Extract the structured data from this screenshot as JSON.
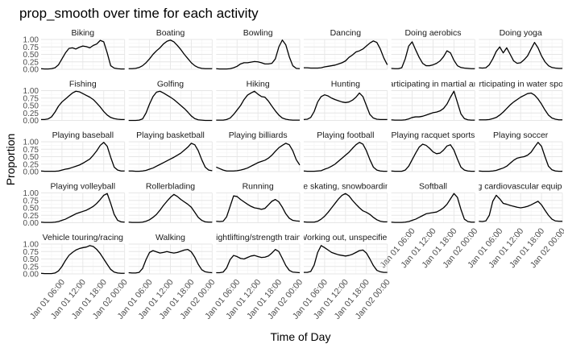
{
  "chart_data": {
    "type": "line",
    "title": "prop_smooth over time for each activity",
    "xlabel": "Time of Day",
    "ylabel": "Proportion",
    "x_range": [
      "Jan 01 00:00",
      "Jan 02 00:00"
    ],
    "x_ticks": [
      {
        "hour": 6,
        "label": "Jan 01 06:00"
      },
      {
        "hour": 12,
        "label": "Jan 01 12:00"
      },
      {
        "hour": 18,
        "label": "Jan 01 18:00"
      },
      {
        "hour": 24,
        "label": "Jan 02 00:00"
      }
    ],
    "ylim": [
      0,
      1
    ],
    "y_ticks": [
      {
        "value": 0,
        "label": "0.00"
      },
      {
        "value": 0.25,
        "label": "0.25"
      },
      {
        "value": 0.5,
        "label": "0.50"
      },
      {
        "value": 0.75,
        "label": "0.75"
      },
      {
        "value": 1,
        "label": "1.00"
      }
    ],
    "grid": true,
    "facet_columns": 6,
    "x_hours": [
      0,
      1,
      2,
      3,
      4,
      5,
      6,
      7,
      8,
      9,
      10,
      11,
      12,
      13,
      14,
      15,
      16,
      17,
      18,
      19,
      20,
      21,
      22,
      23,
      24
    ],
    "panels": [
      {
        "name": "Biking",
        "values": [
          0.02,
          0.01,
          0.01,
          0.02,
          0.05,
          0.15,
          0.35,
          0.55,
          0.7,
          0.72,
          0.68,
          0.74,
          0.78,
          0.76,
          0.72,
          0.8,
          0.85,
          0.97,
          0.92,
          0.55,
          0.12,
          0.04,
          0.02,
          0.01,
          0.01
        ]
      },
      {
        "name": "Boating",
        "values": [
          0.02,
          0.02,
          0.03,
          0.06,
          0.12,
          0.22,
          0.35,
          0.5,
          0.62,
          0.72,
          0.85,
          0.94,
          0.98,
          0.92,
          0.8,
          0.66,
          0.5,
          0.36,
          0.22,
          0.12,
          0.06,
          0.03,
          0.02,
          0.02,
          0.02
        ]
      },
      {
        "name": "Bowling",
        "values": [
          0.02,
          0.01,
          0.01,
          0.01,
          0.02,
          0.05,
          0.1,
          0.18,
          0.22,
          0.22,
          0.24,
          0.26,
          0.25,
          0.22,
          0.18,
          0.18,
          0.2,
          0.35,
          0.75,
          0.98,
          0.82,
          0.42,
          0.12,
          0.03,
          0.02
        ]
      },
      {
        "name": "Dancing",
        "values": [
          0.05,
          0.05,
          0.04,
          0.04,
          0.04,
          0.05,
          0.08,
          0.1,
          0.12,
          0.14,
          0.18,
          0.22,
          0.28,
          0.4,
          0.48,
          0.58,
          0.62,
          0.68,
          0.78,
          0.88,
          0.95,
          0.9,
          0.68,
          0.38,
          0.15
        ]
      },
      {
        "name": "Doing aerobics",
        "values": [
          0.03,
          0.02,
          0.02,
          0.05,
          0.35,
          0.78,
          0.92,
          0.65,
          0.4,
          0.2,
          0.12,
          0.12,
          0.15,
          0.2,
          0.28,
          0.42,
          0.62,
          0.55,
          0.3,
          0.12,
          0.06,
          0.04,
          0.03,
          0.02,
          0.02
        ]
      },
      {
        "name": "Doing yoga",
        "values": [
          0.05,
          0.04,
          0.05,
          0.15,
          0.35,
          0.6,
          0.75,
          0.55,
          0.72,
          0.5,
          0.28,
          0.2,
          0.22,
          0.32,
          0.45,
          0.68,
          0.9,
          0.72,
          0.45,
          0.25,
          0.12,
          0.06,
          0.04,
          0.03,
          0.03
        ]
      },
      {
        "name": "Fishing",
        "values": [
          0.03,
          0.03,
          0.05,
          0.12,
          0.28,
          0.48,
          0.62,
          0.72,
          0.82,
          0.92,
          0.98,
          0.96,
          0.9,
          0.84,
          0.78,
          0.7,
          0.58,
          0.45,
          0.3,
          0.18,
          0.1,
          0.06,
          0.04,
          0.03,
          0.03
        ]
      },
      {
        "name": "Golfing",
        "values": [
          0.0,
          0.0,
          0.0,
          0.01,
          0.05,
          0.25,
          0.55,
          0.8,
          0.95,
          0.98,
          0.92,
          0.85,
          0.78,
          0.7,
          0.6,
          0.5,
          0.4,
          0.28,
          0.15,
          0.06,
          0.02,
          0.01,
          0.0,
          0.0,
          0.0
        ]
      },
      {
        "name": "Hiking",
        "values": [
          0.01,
          0.01,
          0.01,
          0.03,
          0.08,
          0.2,
          0.35,
          0.5,
          0.7,
          0.85,
          0.92,
          0.98,
          0.88,
          0.8,
          0.78,
          0.65,
          0.48,
          0.32,
          0.18,
          0.08,
          0.04,
          0.02,
          0.01,
          0.01,
          0.01
        ]
      },
      {
        "name": "Hunting",
        "values": [
          0.03,
          0.04,
          0.1,
          0.3,
          0.62,
          0.8,
          0.86,
          0.82,
          0.75,
          0.7,
          0.66,
          0.62,
          0.6,
          0.62,
          0.68,
          0.78,
          0.92,
          0.8,
          0.5,
          0.2,
          0.08,
          0.04,
          0.03,
          0.03,
          0.03
        ]
      },
      {
        "name": "Participating in martial arts",
        "values": [
          0.02,
          0.01,
          0.01,
          0.01,
          0.02,
          0.05,
          0.1,
          0.12,
          0.12,
          0.14,
          0.18,
          0.22,
          0.26,
          0.28,
          0.32,
          0.4,
          0.55,
          0.78,
          0.98,
          0.6,
          0.22,
          0.06,
          0.02,
          0.01,
          0.01
        ]
      },
      {
        "name": "Participating in water sports",
        "values": [
          0.02,
          0.02,
          0.02,
          0.03,
          0.06,
          0.1,
          0.18,
          0.28,
          0.4,
          0.52,
          0.62,
          0.7,
          0.78,
          0.84,
          0.9,
          0.92,
          0.85,
          0.72,
          0.55,
          0.35,
          0.18,
          0.08,
          0.04,
          0.02,
          0.02
        ]
      },
      {
        "name": "Playing baseball",
        "values": [
          0.02,
          0.01,
          0.01,
          0.01,
          0.01,
          0.02,
          0.05,
          0.08,
          0.1,
          0.14,
          0.18,
          0.22,
          0.28,
          0.35,
          0.42,
          0.55,
          0.7,
          0.88,
          0.98,
          0.85,
          0.48,
          0.15,
          0.05,
          0.02,
          0.02
        ]
      },
      {
        "name": "Playing basketball",
        "values": [
          0.02,
          0.02,
          0.01,
          0.01,
          0.02,
          0.04,
          0.08,
          0.12,
          0.18,
          0.24,
          0.3,
          0.36,
          0.42,
          0.48,
          0.55,
          0.62,
          0.72,
          0.82,
          0.95,
          0.9,
          0.7,
          0.4,
          0.15,
          0.05,
          0.03
        ]
      },
      {
        "name": "Playing billiards",
        "values": [
          0.15,
          0.1,
          0.05,
          0.02,
          0.02,
          0.02,
          0.03,
          0.05,
          0.08,
          0.12,
          0.18,
          0.24,
          0.3,
          0.34,
          0.38,
          0.45,
          0.55,
          0.68,
          0.8,
          0.88,
          0.95,
          0.9,
          0.7,
          0.4,
          0.22
        ]
      },
      {
        "name": "Playing football",
        "values": [
          0.02,
          0.01,
          0.01,
          0.01,
          0.02,
          0.03,
          0.08,
          0.12,
          0.18,
          0.25,
          0.35,
          0.45,
          0.55,
          0.65,
          0.78,
          0.9,
          0.98,
          0.92,
          0.7,
          0.4,
          0.15,
          0.05,
          0.02,
          0.01,
          0.01
        ]
      },
      {
        "name": "Playing racquet sports",
        "values": [
          0.02,
          0.01,
          0.01,
          0.01,
          0.05,
          0.18,
          0.4,
          0.62,
          0.82,
          0.92,
          0.88,
          0.78,
          0.66,
          0.6,
          0.62,
          0.72,
          0.86,
          0.9,
          0.72,
          0.42,
          0.15,
          0.05,
          0.02,
          0.01,
          0.01
        ]
      },
      {
        "name": "Playing soccer",
        "values": [
          0.02,
          0.01,
          0.01,
          0.01,
          0.02,
          0.04,
          0.08,
          0.12,
          0.18,
          0.28,
          0.38,
          0.45,
          0.48,
          0.5,
          0.55,
          0.65,
          0.82,
          0.98,
          0.85,
          0.5,
          0.18,
          0.06,
          0.02,
          0.01,
          0.01
        ]
      },
      {
        "name": "Playing volleyball",
        "values": [
          0.02,
          0.01,
          0.01,
          0.01,
          0.02,
          0.04,
          0.08,
          0.12,
          0.18,
          0.24,
          0.3,
          0.34,
          0.38,
          0.42,
          0.48,
          0.55,
          0.65,
          0.78,
          0.92,
          0.98,
          0.65,
          0.28,
          0.08,
          0.03,
          0.02
        ]
      },
      {
        "name": "Rollerblading",
        "values": [
          0.02,
          0.01,
          0.01,
          0.01,
          0.02,
          0.05,
          0.1,
          0.18,
          0.28,
          0.42,
          0.58,
          0.72,
          0.85,
          0.95,
          0.88,
          0.78,
          0.7,
          0.62,
          0.52,
          0.35,
          0.18,
          0.08,
          0.03,
          0.02,
          0.02
        ]
      },
      {
        "name": "Running",
        "values": [
          0.05,
          0.04,
          0.05,
          0.2,
          0.55,
          0.9,
          0.88,
          0.78,
          0.7,
          0.62,
          0.55,
          0.5,
          0.48,
          0.45,
          0.48,
          0.6,
          0.72,
          0.78,
          0.7,
          0.52,
          0.3,
          0.15,
          0.08,
          0.06,
          0.05
        ]
      },
      {
        "name": "Ice skating, snowboarding",
        "values": [
          0.03,
          0.02,
          0.02,
          0.02,
          0.05,
          0.12,
          0.22,
          0.35,
          0.5,
          0.65,
          0.8,
          0.92,
          0.98,
          0.9,
          0.75,
          0.62,
          0.5,
          0.4,
          0.35,
          0.28,
          0.18,
          0.1,
          0.05,
          0.03,
          0.03
        ]
      },
      {
        "name": "Softball",
        "values": [
          0.02,
          0.01,
          0.01,
          0.01,
          0.02,
          0.04,
          0.08,
          0.12,
          0.18,
          0.24,
          0.3,
          0.32,
          0.34,
          0.36,
          0.42,
          0.5,
          0.62,
          0.8,
          0.98,
          0.85,
          0.45,
          0.12,
          0.04,
          0.02,
          0.02
        ]
      },
      {
        "name": "Using cardiovascular equipment",
        "values": [
          0.05,
          0.04,
          0.06,
          0.25,
          0.72,
          0.92,
          0.8,
          0.65,
          0.62,
          0.58,
          0.55,
          0.52,
          0.5,
          0.52,
          0.55,
          0.6,
          0.66,
          0.72,
          0.6,
          0.42,
          0.25,
          0.12,
          0.06,
          0.05,
          0.05
        ]
      },
      {
        "name": "Vehicle touring/racing",
        "values": [
          0.02,
          0.01,
          0.01,
          0.01,
          0.03,
          0.1,
          0.25,
          0.45,
          0.62,
          0.72,
          0.8,
          0.85,
          0.88,
          0.9,
          0.95,
          0.92,
          0.82,
          0.68,
          0.5,
          0.32,
          0.15,
          0.06,
          0.03,
          0.02,
          0.02
        ]
      },
      {
        "name": "Walking",
        "values": [
          0.04,
          0.03,
          0.03,
          0.05,
          0.18,
          0.48,
          0.72,
          0.78,
          0.74,
          0.7,
          0.72,
          0.75,
          0.72,
          0.7,
          0.72,
          0.76,
          0.8,
          0.82,
          0.74,
          0.56,
          0.32,
          0.14,
          0.07,
          0.05,
          0.04
        ]
      },
      {
        "name": "Weightlifting/strength training",
        "values": [
          0.04,
          0.04,
          0.06,
          0.2,
          0.48,
          0.62,
          0.58,
          0.52,
          0.5,
          0.55,
          0.6,
          0.62,
          0.58,
          0.55,
          0.56,
          0.6,
          0.7,
          0.82,
          0.75,
          0.52,
          0.28,
          0.12,
          0.06,
          0.05,
          0.04
        ]
      },
      {
        "name": "Working out, unspecified",
        "values": [
          0.05,
          0.05,
          0.08,
          0.3,
          0.72,
          0.95,
          0.88,
          0.8,
          0.72,
          0.68,
          0.64,
          0.62,
          0.6,
          0.62,
          0.66,
          0.72,
          0.78,
          0.8,
          0.7,
          0.5,
          0.28,
          0.12,
          0.07,
          0.05,
          0.05
        ]
      }
    ]
  }
}
